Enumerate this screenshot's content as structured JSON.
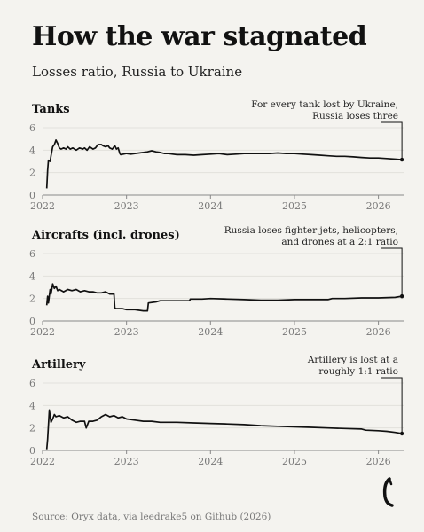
{
  "title": "How the war stagnated",
  "subtitle": "Losses ratio, Russia to Ukraine",
  "source": "Source: Oryx data, via leedrake5 on Github (2026)",
  "colors": {
    "background": "#f4f3ef",
    "line": "#111111",
    "axis": "#888888",
    "tick_text": "#777777",
    "grid": "#e2e1dc"
  },
  "logo_icon": "brand-logo-icon",
  "chart_data": [
    {
      "type": "line",
      "title": "Tanks",
      "annotation": [
        "For every tank lost by Ukraine,",
        "Russia loses three"
      ],
      "ylim": [
        0,
        6
      ],
      "xlim": [
        2022.0,
        2026.3
      ],
      "yticks": [
        0,
        2,
        4,
        6
      ],
      "xticks": [
        "2022",
        "2023",
        "2024",
        "2025",
        "2026"
      ],
      "grid": true,
      "x": [
        2022.05,
        2022.06,
        2022.07,
        2022.09,
        2022.1,
        2022.12,
        2022.14,
        2022.16,
        2022.18,
        2022.2,
        2022.22,
        2022.25,
        2022.28,
        2022.3,
        2022.33,
        2022.36,
        2022.4,
        2022.44,
        2022.48,
        2022.5,
        2022.53,
        2022.56,
        2022.6,
        2022.63,
        2022.66,
        2022.7,
        2022.72,
        2022.75,
        2022.78,
        2022.8,
        2022.83,
        2022.86,
        2022.88,
        2022.9,
        2022.92,
        2022.93,
        2023.0,
        2023.05,
        2023.1,
        2023.15,
        2023.2,
        2023.25,
        2023.3,
        2023.35,
        2023.4,
        2023.45,
        2023.5,
        2023.55,
        2023.6,
        2023.7,
        2023.8,
        2023.9,
        2024.0,
        2024.1,
        2024.2,
        2024.3,
        2024.4,
        2024.5,
        2024.6,
        2024.7,
        2024.8,
        2024.9,
        2025.0,
        2025.1,
        2025.2,
        2025.3,
        2025.4,
        2025.5,
        2025.6,
        2025.7,
        2025.8,
        2025.9,
        2026.0,
        2026.1,
        2026.2,
        2026.28
      ],
      "y": [
        0.6,
        2.2,
        3.1,
        3.0,
        3.5,
        4.3,
        4.5,
        4.9,
        4.6,
        4.2,
        4.1,
        4.2,
        4.1,
        4.3,
        4.1,
        4.2,
        4.0,
        4.2,
        4.1,
        4.2,
        4.0,
        4.3,
        4.1,
        4.2,
        4.5,
        4.5,
        4.4,
        4.3,
        4.4,
        4.2,
        4.1,
        4.4,
        4.1,
        4.2,
        3.7,
        3.6,
        3.7,
        3.65,
        3.7,
        3.75,
        3.8,
        3.85,
        3.95,
        3.85,
        3.8,
        3.7,
        3.7,
        3.65,
        3.6,
        3.6,
        3.55,
        3.6,
        3.65,
        3.7,
        3.6,
        3.65,
        3.7,
        3.7,
        3.7,
        3.7,
        3.75,
        3.7,
        3.7,
        3.65,
        3.6,
        3.55,
        3.5,
        3.45,
        3.45,
        3.4,
        3.35,
        3.3,
        3.3,
        3.25,
        3.2,
        3.15
      ]
    },
    {
      "type": "line",
      "title": "Aircrafts (incl. drones)",
      "annotation": [
        "Russia loses fighter jets, helicopters,",
        "and drones at a 2:1 ratio"
      ],
      "ylim": [
        0,
        6
      ],
      "xlim": [
        2022.0,
        2026.3
      ],
      "yticks": [
        0,
        2,
        4,
        6
      ],
      "xticks": [
        "2022",
        "2023",
        "2024",
        "2025",
        "2026"
      ],
      "grid": true,
      "x": [
        2022.05,
        2022.06,
        2022.07,
        2022.09,
        2022.1,
        2022.12,
        2022.14,
        2022.16,
        2022.18,
        2022.2,
        2022.25,
        2022.3,
        2022.35,
        2022.4,
        2022.45,
        2022.5,
        2022.55,
        2022.6,
        2022.65,
        2022.7,
        2022.75,
        2022.8,
        2022.85,
        2022.86,
        2022.87,
        2022.95,
        2023.0,
        2023.1,
        2023.2,
        2023.25,
        2023.26,
        2023.35,
        2023.4,
        2023.5,
        2023.6,
        2023.75,
        2023.76,
        2023.9,
        2024.0,
        2024.2,
        2024.4,
        2024.6,
        2024.8,
        2025.0,
        2025.2,
        2025.4,
        2025.45,
        2025.6,
        2025.8,
        2026.0,
        2026.2,
        2026.28
      ],
      "y": [
        1.4,
        2.2,
        1.6,
        2.8,
        2.4,
        3.3,
        2.9,
        3.1,
        2.7,
        2.8,
        2.6,
        2.8,
        2.7,
        2.8,
        2.6,
        2.7,
        2.6,
        2.6,
        2.5,
        2.5,
        2.6,
        2.4,
        2.4,
        1.2,
        1.1,
        1.1,
        1.0,
        1.0,
        0.9,
        0.9,
        1.6,
        1.7,
        1.8,
        1.8,
        1.8,
        1.8,
        1.95,
        1.95,
        2.0,
        1.95,
        1.9,
        1.85,
        1.85,
        1.9,
        1.9,
        1.9,
        2.0,
        2.0,
        2.05,
        2.05,
        2.1,
        2.2
      ]
    },
    {
      "type": "line",
      "title": "Artillery",
      "annotation": [
        "Artillery is lost at a",
        "roughly 1:1 ratio"
      ],
      "ylim": [
        0,
        6
      ],
      "xlim": [
        2022.0,
        2026.3
      ],
      "yticks": [
        0,
        2,
        4,
        6
      ],
      "xticks": [
        "2022",
        "2023",
        "2024",
        "2025",
        "2026"
      ],
      "grid": true,
      "x": [
        2022.05,
        2022.06,
        2022.08,
        2022.1,
        2022.12,
        2022.14,
        2022.16,
        2022.2,
        2022.25,
        2022.3,
        2022.35,
        2022.4,
        2022.45,
        2022.5,
        2022.52,
        2022.55,
        2022.6,
        2022.65,
        2022.7,
        2022.75,
        2022.8,
        2022.85,
        2022.9,
        2022.95,
        2023.0,
        2023.1,
        2023.2,
        2023.3,
        2023.4,
        2023.5,
        2023.6,
        2023.8,
        2024.0,
        2024.2,
        2024.4,
        2024.6,
        2024.8,
        2025.0,
        2025.2,
        2025.4,
        2025.6,
        2025.8,
        2025.85,
        2026.0,
        2026.1,
        2026.2,
        2026.28
      ],
      "y": [
        0.1,
        1.0,
        3.6,
        2.5,
        2.8,
        3.2,
        3.0,
        3.1,
        2.9,
        3.0,
        2.7,
        2.5,
        2.6,
        2.6,
        2.0,
        2.6,
        2.6,
        2.7,
        3.0,
        3.2,
        3.0,
        3.1,
        2.9,
        3.0,
        2.8,
        2.7,
        2.6,
        2.6,
        2.5,
        2.5,
        2.5,
        2.45,
        2.4,
        2.35,
        2.3,
        2.2,
        2.15,
        2.1,
        2.05,
        2.0,
        1.95,
        1.9,
        1.8,
        1.75,
        1.7,
        1.6,
        1.5
      ]
    }
  ]
}
